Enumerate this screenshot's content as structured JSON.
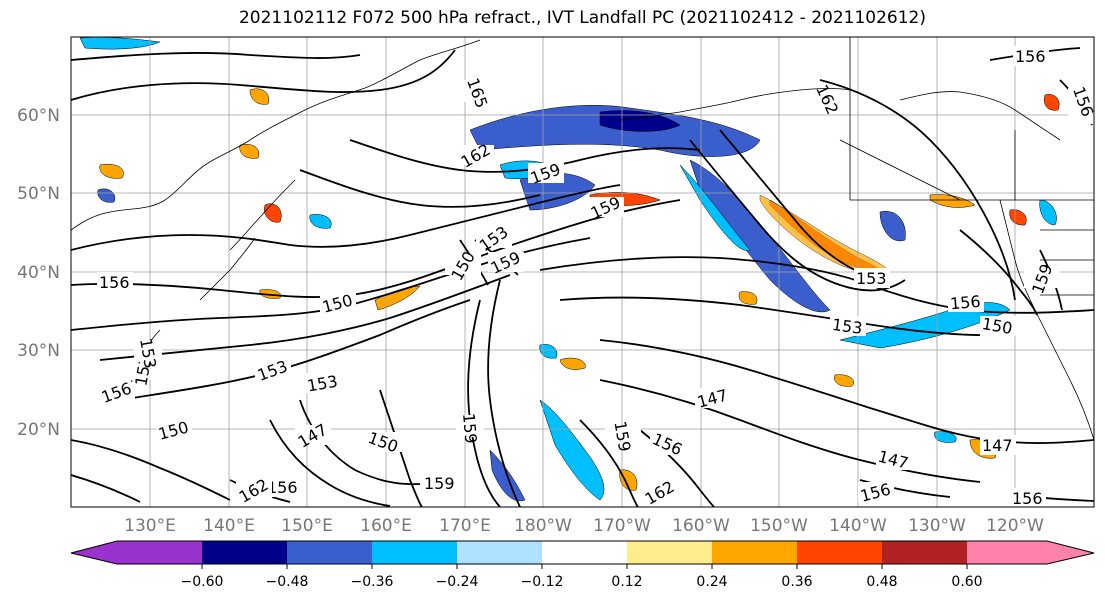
{
  "title": "2021102112 F072 500 hPa refract., IVT Landfall PC (2021102412 - 2021102612)",
  "lat_labels": [
    "60°N",
    "50°N",
    "40°N",
    "30°N",
    "20°N"
  ],
  "lon_labels": [
    "130°E",
    "140°E",
    "150°E",
    "160°E",
    "170°E",
    "180°W",
    "170°W",
    "160°W",
    "150°W",
    "140°W",
    "130°W",
    "120°W"
  ],
  "colorbar": {
    "levels": [
      "−0.60",
      "−0.48",
      "−0.36",
      "−0.24",
      "−0.12",
      "0.12",
      "0.24",
      "0.36",
      "0.48",
      "0.60"
    ],
    "colors": [
      "#9a32cd",
      "#00008b",
      "#3a5fcd",
      "#00bfff",
      "#b0e2ff",
      "#ffffff",
      "#ffec8b",
      "#ffa500",
      "#ff4500",
      "#b22222",
      "#ff82ab"
    ]
  },
  "contour_labels": [
    "165",
    "162",
    "162",
    "159",
    "159",
    "156",
    "156",
    "156",
    "153",
    "153",
    "153",
    "153",
    "153",
    "150",
    "150",
    "150",
    "150",
    "147",
    "147",
    "147",
    "147",
    "159",
    "159",
    "162",
    "159",
    "156",
    "156",
    "150",
    "156",
    "153",
    "156",
    "159",
    "162",
    "156",
    "153",
    "159",
    "156"
  ]
}
